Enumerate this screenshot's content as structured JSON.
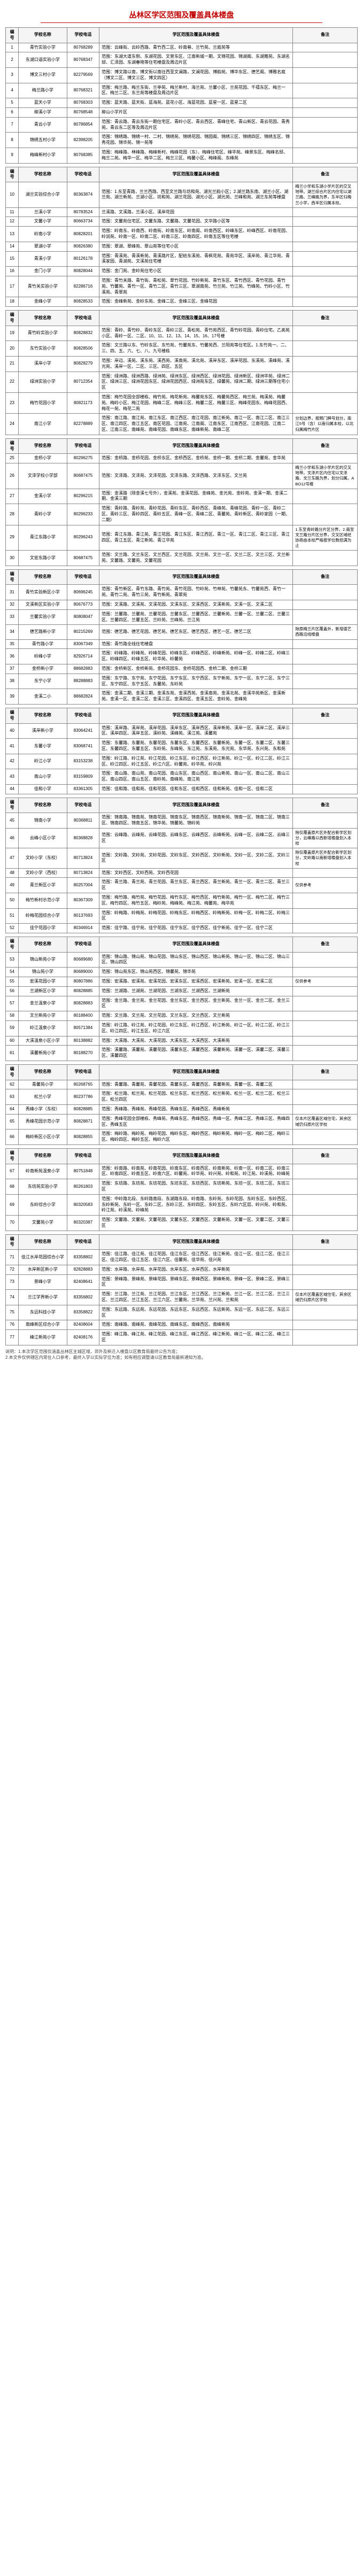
{
  "title": "丛林区学区范围及覆盖具体楼盘",
  "columns": [
    "编号",
    "学校名称",
    "学校电话",
    "学区范围及覆盖具体楼盘",
    "备注"
  ],
  "groups": [
    {
      "rows": [
        {
          "idx": "1",
          "name": "青竹实验小学",
          "zip": "80768289",
          "desc": "范围：云峰街、云岭西路、青竹西二区、岭南巷、兰竹苑、兰庭苑等",
          "note": ""
        },
        {
          "idx": "2",
          "name": "东湖口语实验小学",
          "zip": "80768347",
          "desc": "范围：东湖大道东侧、东湖花园、文景东区、江南新城一期、文锦花园、锦湖阁、东湖雅苑、东湖名邸、汇泽园、东湖春晓等住宅楼盘及周边片区",
          "note": ""
        },
        {
          "idx": "3",
          "name": "博文三村小学",
          "zip": "82279569",
          "desc": "范围：博文路以南，博文街以南往西至文澜路，文澜花园、博韵苑、博华东区、德艺阁、博雅名庭（博文二区、博文三区、博文四区）",
          "note": ""
        },
        {
          "idx": "4",
          "name": "梅兰路小学",
          "zip": "80768321",
          "desc": "范围：梅兰路、梅兰东街、兰亭苑、梅兰新村、海兰苑、兰馨小区、兰苑花园、千禧东区、梅兰一区、梅兰二区、东兰苑等楼盘及周边片区",
          "note": ""
        },
        {
          "idx": "5",
          "name": "蓝天小学",
          "zip": "80768303",
          "desc": "范围：蓝天路、蓝天街、蓝海苑、蓝花小区、海蓝花园、蓝星一区、蓝星二区",
          "note": ""
        },
        {
          "idx": "6",
          "name": "柳溪小学",
          "zip": "80768548",
          "desc": "柳山小学片区",
          "note": ""
        },
        {
          "idx": "7",
          "name": "青云小学",
          "zip": "80786854",
          "desc": "范围：青云路、青云东街一期住宅区、青岭小区、青云西区、青峰住宅、青山新区、青云花园、青秀苑、青云东二区等及周边片区",
          "note": ""
        },
        {
          "idx": "8",
          "name": "锦绣五村小学",
          "zip": "82398205",
          "desc": "范围：锦绣路、锦绣一村、二村、锦绣苑、锦绣花园、锦园阁、锦绣三区、锦绣四区、锦绣五区、锦秀花园、锦华苑、锦一苑等",
          "note": ""
        },
        {
          "idx": "9",
          "name": "梅峰新村小学",
          "zip": "80768385",
          "desc": "范围：梅峰路、林峰路、梅峰新村、梅峰花园（东）、梅峰住宅区、峰华苑、峰景东区、梅峰名邸、梅兰二苑、梅华一区、梅华二区、梅兰三区、梅馨小区、梅峰阁、东峰苑",
          "note": ""
        }
      ]
    },
    {
      "rows": [
        {
          "idx": "10",
          "name": "湖兰实验综合小学",
          "zip": "80363874",
          "desc": "范围：1.东至青路，兰兰西路、西至文兰路与坊和苑、湖光兰韵小区；2.湖兰路东南、湖兰小区、湖兰苑、湖兰新苑、兰湖小区、坊和苑、湖兰花园、湖光小区、湖光苑、兰峰和苑、湖兰东苑等楼盘",
          "note": "梅兰小学和东湖小学片区的交叉地带。湖兰综合片区内住宅以湖兰路、兰峰路为界，东半区归梅兰小学，西半区归属本校。"
        },
        {
          "idx": "11",
          "name": "兰溪小学",
          "zip": "80783524",
          "desc": "兰溪路、文溪路，兰溪小区、溪岸花园",
          "note": ""
        },
        {
          "idx": "12",
          "name": "文馨小学",
          "zip": "80663734",
          "desc": "范围：文馨苑住宅区、文馨东路、文馨路、文馨花园、文华路小区等",
          "note": ""
        },
        {
          "idx": "13",
          "name": "岭南小学",
          "zip": "80828201",
          "desc": "范围：岭南东、岭南西、岭南街、岭南东区、岭南阁、岭南西区、岭峰东区、岭峰西区、岭南花园、岭润苑、岭南一区、岭南二区、岭南三区、岭南四区、岭南五区等住宅楼",
          "note": ""
        },
        {
          "idx": "14",
          "name": "翠湖小学",
          "zip": "80826380",
          "desc": "范围：翠湖、翠峰苑、翠山苑等住宅小区",
          "note": ""
        },
        {
          "idx": "15",
          "name": "青溪小学",
          "zip": "80126178",
          "desc": "范围：青溪苑、青溪新苑、青溪路片区，配给东溪苑、青枫花苑、青苑华区、溪岸苑、青江华苑、青溪家园、青湖苑、文溪苑住宅楼",
          "note": ""
        },
        {
          "idx": "16",
          "name": "金门小学",
          "zip": "80828044",
          "desc": "范围：金门苑、金岭苑住宅小区",
          "note": ""
        },
        {
          "idx": "17",
          "name": "青竹关实验小学",
          "zip": "82286716",
          "desc": "范围：青竹关路、青竹街、青松苑、翠竹花园、竹岭新苑、青竹东区、青竹西区、青竹花园、青竹苑、竹馨苑、青竹一区、青竹二区、青竹三区、翠湖南苑、竹兰苑、竹江苑、竹峰苑、竹岭小区、竹溪苑、青翠苑",
          "note": ""
        },
        {
          "idx": "18",
          "name": "金峰小学",
          "zip": "80828533",
          "desc": "范围：金峰新苑、金岭东苑、金峰二区、金峰三区、金峰花园",
          "note": ""
        }
      ]
    },
    {
      "rows": [
        {
          "idx": "19",
          "name": "青竹岭实验小学",
          "zip": "80828832",
          "desc": "范围：青岭、青竹岭、青岭东区、青岭三区、青松苑、青竹苑西区、青竹岭花园、青岭住宅。乙类苑小区、青岭一区、二区、10、11、12、13、14、15、16、17号楼",
          "note": ""
        },
        {
          "idx": "20",
          "name": "东竹实验小学",
          "zip": "80828506",
          "desc": "范围：文兰路以东、竹岭东区、东竹苑、竹馨苑东、竹馨苑西、兰阳苑等住宅区。1.东竹苑一、二、三、四、五、六、七、八、九号楼栋",
          "note": ""
        },
        {
          "idx": "21",
          "name": "溪岸小学",
          "zip": "80828279",
          "desc": "范围：岸边、溪苑、溪东苑、溪西苑、溪南苑、溪北苑、溪岸东区、溪岸花园、东溪苑、溪峰苑、溪光苑、溪岸一区、二区、三区、四区、五区",
          "note": ""
        },
        {
          "idx": "22",
          "name": "绿洲实验小学",
          "zip": "80712354",
          "desc": "范围：绿洲路、绿洲西路、绿洲苑、绿洲东区、绿洲西区、绿洲花园、绿洲新区、绿洲华苑、绿洲二区、绿洲三区、绿洲花园东区、绿洲花园西区、绿洲苑东区、绿馨苑、绿洲二期、绿洲三期等住宅小区",
          "note": ""
        },
        {
          "idx": "23",
          "name": "梅竹花园小学",
          "zip": "80821173",
          "desc": "范围：梅竹花园全部楼栋、梅竹苑、梅花新苑、梅馨苑东区、梅馨苑西区、梅兰苑、梅溪苑、梅馨苑、梅岭小区、梅江花园、梅峰二区、梅峰三区、梅馨二区、梅馨三区、梅峰花园东、梅峰花园西、梅花一苑、梅花二苑",
          "note": ""
        },
        {
          "idx": "24",
          "name": "南江小学",
          "zip": "82278889",
          "desc": "范围：南江路、南江苑、南江东区、南江西区、南江花园、南江新苑、南江一区、南江二区、南江三区、南江四区、南江五区、南区花园、江南苑、江南阁、江南东区、江南西区、江南花园、江南二区、江南三区、南峰苑、南峰花园、南峰东区、南峰新苑、南峰二区",
          "note": "分划边界，按照门牌号划分，南江5号（含）以南归属本校，以北归属梅竹片区"
        }
      ]
    },
    {
      "rows": [
        {
          "idx": "25",
          "name": "金桥小学",
          "zip": "80296275",
          "desc": "范围：金桥路、金桥花园、金桥东区、金桥西区、金桥苑、金桥一期、金桥二期、金馨苑、金华苑",
          "note": ""
        },
        {
          "idx": "26",
          "name": "文泽学校小学部",
          "zip": "80687475",
          "desc": "范围：文泽路、文泽苑、文泽花园、文泽东路、文泽西路、文泽东区、文兰苑",
          "note": "梅兰小学和东湖小学片区的交叉地带。文泽片区内住宅以文泽路、文兰东路为界，划分归属。ABO12号楼"
        },
        {
          "idx": "27",
          "name": "金溪小学",
          "zip": "80296215",
          "desc": "范围：金溪路（除金溪七号外），金溪苑、金溪花园、金峰苑、金光苑、金岭苑、金溪一期、金溪二期、金溪三期",
          "note": ""
        },
        {
          "idx": "28",
          "name": "青岭小学",
          "zip": "80296233",
          "desc": "范围：青岭路、青岭苑、青岭花园、青岭东区、青岭西区、青峰苑、青峰花园、青岭一区、青岭二区、青岭三区、青岭四区、青岭五区、青峰一区、青峰二区、青馨苑、青岭新区、青岭家园（一期、二期）",
          "note": ""
        },
        {
          "idx": "29",
          "name": "青江东路小学",
          "zip": "80296243",
          "desc": "范围：青江东路、青江苑、青江花园、青江东区、青江西区、青江一区、青江二区、青江三区、青江四区、青江五区、青江新苑、青江华苑",
          "note": "1.东至青岭路分片区分界，2.南至文兰路分片区分界，交叉区域经协商由本校严格按学位数招满为止"
        },
        {
          "idx": "30",
          "name": "文宏东路小学",
          "zip": "80687475",
          "desc": "范围：文兰路、文兰东区、文兰西区、文兰花园、文兰苑、文兰一区、文兰二区、文兰三区、文兰新苑、文馨路、文馨苑、文馨花园",
          "note": ""
        }
      ]
    },
    {
      "rows": [
        {
          "idx": "31",
          "name": "青竹实验新区小学",
          "zip": "80696245",
          "desc": "范围：青竹新区、青竹东路、青竹苑、青竹花园、竹岭苑、竹林苑、竹馨苑东、竹馨苑西、青竹一苑、青竹二苑、青竹三苑、青竹新苑、青翠苑",
          "note": ""
        },
        {
          "idx": "32",
          "name": "文溪新区实验小学",
          "zip": "80676773",
          "desc": "范围：文溪路、文溪苑、文溪花园、文溪东区、文溪西区、文溪新苑、文溪一区、文溪二区",
          "note": ""
        },
        {
          "idx": "33",
          "name": "兰馨实验小学",
          "zip": "80808047",
          "desc": "范围：兰馨路、兰馨苑、兰馨花园、兰馨东区、兰馨西区、兰馨新苑、兰馨一区、兰馨二区、兰馨三区、兰馨四区、兰馨五区、兰岭苑、兰峰苑、兰江苑",
          "note": ""
        },
        {
          "idx": "34",
          "name": "德艺路新小学",
          "zip": "80215269",
          "desc": "范围：德艺路、德艺花园、德艺苑、德艺东区、德艺西区、德艺一区、德艺二区",
          "note": "除原梅兰片区覆盖外，新增德艺西路沿线楼盘"
        },
        {
          "idx": "35",
          "name": "青竹路小学",
          "zip": "83067349",
          "desc": "范围：青竹路全线住宅楼盘",
          "note": ""
        },
        {
          "idx": "36",
          "name": "岭峰小学",
          "zip": "82926714",
          "desc": "范围：岭峰路、岭峰苑、岭峰花园、岭峰东区、岭峰西区、岭峰新苑、岭峰一区、岭峰二区、岭峰三区、岭峰四区、岭峰五区、岭华苑、岭馨苑",
          "note": ""
        },
        {
          "idx": "37",
          "name": "金桥新小学",
          "zip": "88682883",
          "desc": "范围：金桥新区、金桥新苑、金桥花园东、金桥花园西、金桥二期、金桥三期",
          "note": ""
        },
        {
          "idx": "38",
          "name": "东宁小学",
          "zip": "88288883",
          "desc": "范围：东宁路、东宁苑、东宁花园、东宁东区、东宁西区、东宁新苑、东宁一区、东宁二区、东宁三区、东宁四区、东宁五区、东馨苑、东岭苑",
          "note": ""
        },
        {
          "idx": "39",
          "name": "金溪二小",
          "zip": "88682824",
          "desc": "范围：金溪二期、金溪三期、金溪东苑、金溪西苑、金溪南苑、金溪北苑、金溪华苑新区、金溪新苑、金溪一区、金溪二区、金溪三区、金溪四区、金溪五区、金岭苑、金峰苑",
          "note": ""
        }
      ]
    },
    {
      "rows": [
        {
          "idx": "40",
          "name": "溪岸新小学",
          "zip": "83064241",
          "desc": "范围：溪岸路、溪岸苑、溪岸花园、溪岸东区、溪岸西区、溪岸新苑、溪岸一区、溪岸二区、溪岸三区、溪岸四区、溪岸五区、溪岭苑、溪峰苑、溪江苑、溪馨苑",
          "note": ""
        },
        {
          "idx": "41",
          "name": "东馨小学",
          "zip": "83068741",
          "desc": "范围：东馨路、东馨苑、东馨花园、东馨东区、东馨西区、东馨新苑、东馨一区、东馨二区、东馨三区、东馨四区、东馨五区、东岭苑、东峰苑、东江苑、东溪苑、东光苑、东华苑、东兴苑、东和苑",
          "note": ""
        },
        {
          "idx": "42",
          "name": "岭江小学",
          "zip": "83153238",
          "desc": "范围：岭江路、岭江苑、岭江花园、岭江东区、岭江西区、岭江新苑、岭江一区、岭江二区、岭江三区、岭江四区、岭江五区、岭江六区、岭馨苑、岭华苑、岭兴苑",
          "note": ""
        },
        {
          "idx": "43",
          "name": "南山小学",
          "zip": "83159809",
          "desc": "范围：南山路、南山苑、南山花园、南山东区、南山西区、南山新苑、南山一区、南山二区、南山三区、南山四区、南山五区、南岭苑、南峰苑、南江苑",
          "note": ""
        },
        {
          "idx": "44",
          "name": "佳和小学",
          "zip": "83361305",
          "desc": "范围：佳和路、佳和苑、佳和花园、佳和东区、佳和西区、佳和新苑、佳和一区、佳和二区",
          "note": ""
        }
      ]
    },
    {
      "rows": [
        {
          "idx": "45",
          "name": "锦南小学",
          "zip": "80368811",
          "desc": "范围：锦南路、锦南苑、锦南花园、锦南东区、锦南西区、锦南新苑、锦南一区、锦南二区、锦南三区、锦南四区、锦南五区、锦华苑、锦馨苑、锦岭苑",
          "note": ""
        },
        {
          "idx": "46",
          "name": "云峰小区小学",
          "zip": "80368828",
          "desc": "范围：云峰路、云峰苑、云峰花园、云峰东区、云峰西区、云峰新苑、云峰一区、云峰二区、云峰三区",
          "note": "除仅覆盖原片区外配合新学区划分，云峰路以西新增楼盘划入本校"
        },
        {
          "idx": "47",
          "name": "文岭小学（东校）",
          "zip": "80713824",
          "desc": "范围：文岭路、文岭苑、文岭花园、文岭东区、文岭西区、文岭新苑、文岭一区、文岭二区、文岭三区",
          "note": "除仅覆盖原片区外配合新学区划分，文岭路以南新增楼盘划入本校"
        },
        {
          "idx": "48",
          "name": "文岭小学（西校）",
          "zip": "80713824",
          "desc": "范围：文岭西区、文岭西苑、文岭西花园",
          "note": ""
        },
        {
          "idx": "49",
          "name": "青兰新区小学",
          "zip": "80257004",
          "desc": "范围：青兰路、青兰苑、青兰花园、青兰东区、青兰西区、青兰新苑、青兰一区、青兰二区、青兰三区",
          "note": "仅供参考"
        },
        {
          "idx": "50",
          "name": "梅竹新村示范小学",
          "zip": "80367309",
          "desc": "范围：梅竹路、梅竹苑、梅竹花园、梅竹东区、梅竹西区、梅竹新苑、梅竹一区、梅竹二区、梅竹三区、梅竹四区、梅竹五区、梅岭苑、梅峰苑、梅江苑、梅馨苑、梅华苑",
          "note": ""
        },
        {
          "idx": "51",
          "name": "岭梅花园综合小学",
          "zip": "80137693",
          "desc": "范围：岭梅路、岭梅苑、岭梅花园、岭梅东区、岭梅西区、岭梅新苑、岭梅一区、岭梅二区、岭梅三区",
          "note": ""
        },
        {
          "idx": "52",
          "name": "佳宁花园小学",
          "zip": "80346914",
          "desc": "范围：佳宁路、佳宁苑、佳宁花园、佳宁东区、佳宁西区、佳宁新苑、佳宁一区、佳宁二区",
          "note": ""
        }
      ]
    },
    {
      "rows": [
        {
          "idx": "53",
          "name": "锦山新苑小学",
          "zip": "80689680",
          "desc": "范围：锦山路、锦山苑、锦山花园、锦山东区、锦山西区、锦山新苑、锦山一区、锦山二区、锦山三区、锦山四区",
          "note": ""
        },
        {
          "idx": "54",
          "name": "锦山苑小学",
          "zip": "80689000",
          "desc": "范围：锦山苑东区、锦山苑西区、锦馨苑、锦华苑",
          "note": ""
        },
        {
          "idx": "55",
          "name": "宏溪花园小学",
          "zip": "80807886",
          "desc": "范围：宏溪路、宏溪苑、宏溪花园、宏溪东区、宏溪西区、宏溪新苑、宏溪一区、宏溪二区",
          "note": "仅供参考"
        },
        {
          "idx": "56",
          "name": "兰湖新区小学",
          "zip": "80828885",
          "desc": "范围：兰湖路、兰湖苑、兰湖花园、兰湖东区、兰湖西区、兰湖新苑",
          "note": ""
        },
        {
          "idx": "57",
          "name": "金兰温泉小学",
          "zip": "80828883",
          "desc": "范围：金兰路、金兰苑、金兰花园、金兰东区、金兰西区、金兰新苑、金兰一区、金兰二区、金兰三区",
          "note": ""
        },
        {
          "idx": "58",
          "name": "文兰新苑小学",
          "zip": "80188400",
          "desc": "范围：文兰路、文兰苑、文兰花园、文兰东区、文兰西区、文兰新苑",
          "note": ""
        },
        {
          "idx": "59",
          "name": "岭江温泉小学",
          "zip": "80571384",
          "desc": "范围：岭江路、岭江苑、岭江花园、岭江东区、岭江西区、岭江新苑、岭江一区、岭江二区、岭江三区、岭江四区、岭江五区、岭江六区",
          "note": ""
        },
        {
          "idx": "60",
          "name": "大溪温泉小区小学",
          "zip": "80138882",
          "desc": "范围：大溪路、大溪苑、大溪花园、大溪东区、大溪西区、大溪新苑",
          "note": ""
        },
        {
          "idx": "61",
          "name": "溪馨新苑小学",
          "zip": "80188270",
          "desc": "范围：溪馨路、溪馨苑、溪馨花园、溪馨东区、溪馨西区、溪馨新苑、溪馨一区、溪馨二区、溪馨三区、溪馨四区",
          "note": ""
        }
      ]
    },
    {
      "rows": [
        {
          "idx": "62",
          "name": "青馨苑小学",
          "zip": "80268765",
          "desc": "范围：青馨路、青馨苑、青馨花园、青馨东区、青馨西区、青馨新苑、青馨一区、青馨二区",
          "note": ""
        },
        {
          "idx": "63",
          "name": "松兰小学",
          "zip": "80237786",
          "desc": "范围：松兰路、松兰苑、松兰花园、松兰东区、松兰西区、松兰新苑、松兰一区、松兰二区、松兰三区、松兰四区",
          "note": ""
        },
        {
          "idx": "64",
          "name": "秀峰小学（东校）",
          "zip": "80828885",
          "desc": "范围：秀峰路、秀峰苑、秀峰花园、秀峰东区、秀峰西区、秀峰新苑",
          "note": ""
        },
        {
          "idx": "65",
          "name": "秀峰花园示范小学",
          "zip": "80828871",
          "desc": "范围：秀峰花园全部楼栋、秀峰苑、秀峰东区、秀峰西区、秀峰一区、秀峰二区、秀峰三区、秀峰四区、秀峰五区",
          "note": "仅本片区覆盖区域住宅，其余区域仍归原片区学校"
        },
        {
          "idx": "66",
          "name": "梅岭新区小区小学",
          "zip": "80828855",
          "desc": "范围：梅岭路、梅岭苑、梅岭花园、梅岭东区、梅岭西区、梅岭新苑、梅岭一区、梅岭二区、梅岭三区、梅岭四区、梅岭五区、梅岭六区",
          "note": ""
        }
      ]
    },
    {
      "rows": [
        {
          "idx": "67",
          "name": "岭南新苑温泉小学",
          "zip": "80751848",
          "desc": "范围：岭南路、岭南苑、岭南花园、岭南东区、岭南西区、岭南新苑、岭南一区、岭南二区、岭南三区、岭南四区、岭南五区、岭南六区、岭馨苑、岭华苑、岭兴苑、岭和苑、岭江苑、岭溪苑、岭峰苑",
          "note": ""
        },
        {
          "idx": "68",
          "name": "东坊苑实验小学",
          "zip": "80261803",
          "desc": "范围：东坊路、东坊苑、东坊花园、东坊东区、东坊西区、东坊新苑、东坊一区、东坊二区、东坊三区",
          "note": ""
        },
        {
          "idx": "69",
          "name": "东岭综合小学",
          "zip": "80320583",
          "desc": "范围：中岭路北段、东岭路南段、东湖路东段、岭南路、东岭苑、东岭花园、东岭东区、东岭西区、东岭新苑、东岭一区、东岭二区、东岭三区、东岭四区、东岭五区、东岭六区层、岭兴苑、岭和苑、岭江苑、岭溪苑、岭峰苑",
          "note": ""
        },
        {
          "idx": "70",
          "name": "文馨苑小学",
          "zip": "80320387",
          "desc": "范围：文馨路、文馨苑、文馨花园、文馨东区、文馨西区、文馨新苑、文馨一区、文馨二区、文馨三区",
          "note": ""
        }
      ]
    },
    {
      "rows": [
        {
          "idx": "71",
          "name": "佳江水岸花园综合小学",
          "zip": "83358802",
          "desc": "范围：佳江路、佳江苑、佳江花园、佳江东区、佳江西区、佳江新苑、佳江一区、佳江二区、佳江三区、佳江四区、佳江五区、佳江六区、佳馨苑、佳华苑、佳兴苑",
          "note": ""
        },
        {
          "idx": "72",
          "name": "水岸新区新小学",
          "zip": "82828883",
          "desc": "范围：水岸路、水岸苑、水岸花园、水岸东区、水岸西区、水岸新苑",
          "note": ""
        },
        {
          "idx": "73",
          "name": "景峰小学",
          "zip": "82408641",
          "desc": "范围：景峰路、景峰苑、景峰花园、景峰东区、景峰西区、景峰新苑、景峰一区、景峰二区、景峰三区",
          "note": ""
        },
        {
          "idx": "74",
          "name": "兰江学界新小学",
          "zip": "83356802",
          "desc": "范围：兰江路、兰江苑、兰江花园、兰江东区、兰江西区、兰江新苑、兰江一区、兰江二区、兰江三区、兰江四区、兰江五区、兰江六区、兰馨苑、兰华苑、兰兴苑、兰和苑",
          "note": "仅本片区覆盖区域住宅，其余区域仍归原片区学校"
        },
        {
          "idx": "75",
          "name": "东远科技小学",
          "zip": "83358822",
          "desc": "范围：东远路、东远苑、东远花园、东远东区、东远西区、东远新苑、东远一区、东远二区、东远三区",
          "note": ""
        },
        {
          "idx": "76",
          "name": "南峰新区综合小学",
          "zip": "82408604",
          "desc": "范围：南峰路、南峰苑、南峰花园、南峰东区、南峰西区、南峰新苑",
          "note": ""
        },
        {
          "idx": "77",
          "name": "峰江新苑小学",
          "zip": "82408176",
          "desc": "范围：峰江路、峰江苑、峰江花园、峰江东区、峰江西区、峰江新苑、峰江一区、峰江二区、峰江三区",
          "note": ""
        }
      ]
    }
  ],
  "footnotes": [
    "说明：1.本次学区范围仅涵盖丛林区主城区域，郊外及新迁入楼盘以区教育局最终公告为准；",
    "2.本文件仅供辖区内常住人口参考，最终入学以实际学位为准；如有相应调整请以区教育局最新通知为准。"
  ]
}
